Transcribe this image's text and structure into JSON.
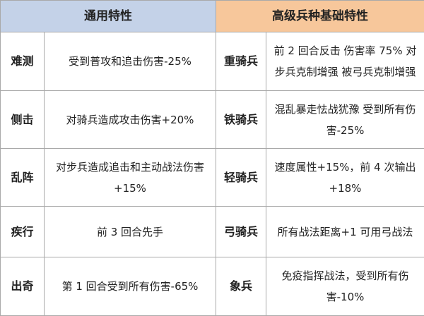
{
  "headers": {
    "general_traits": "通用特性",
    "advanced_troop_traits": "高级兵种基础特性"
  },
  "rows": [
    {
      "left_name": "难测",
      "left_desc": "受到普攻和追击伤害-25%",
      "right_name": "重骑兵",
      "right_desc": "前 2 回合反击  伤害率 75%  对步兵克制增强  被弓兵克制增强"
    },
    {
      "left_name": "侧击",
      "left_desc": "对骑兵造成攻击伤害+20%",
      "right_name": "铁骑兵",
      "right_desc": "混乱暴走怯战犹豫  受到所有伤害-25%"
    },
    {
      "left_name": "乱阵",
      "left_desc": "对步兵造成追击和主动战法伤害+15%",
      "right_name": "轻骑兵",
      "right_desc": "速度属性+15%，前 4 次输出+18%"
    },
    {
      "left_name": "疾行",
      "left_desc": "前 3 回合先手",
      "right_name": "弓骑兵",
      "right_desc": "所有战法距离+1    可用弓战法"
    },
    {
      "left_name": "出奇",
      "left_desc": "第 1 回合受到所有伤害-65%",
      "right_name": "象兵",
      "right_desc": "免疫指挥战法，受到所有伤害-10%"
    }
  ]
}
